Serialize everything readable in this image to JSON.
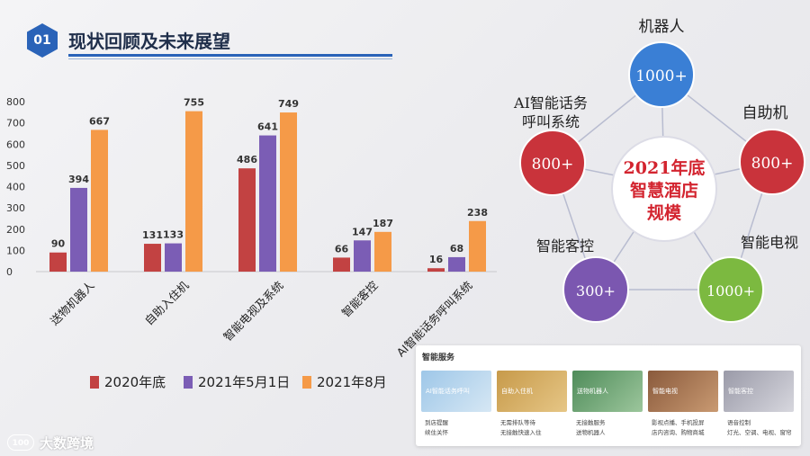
{
  "header": {
    "number": "01",
    "title": "现状回顾及未来展望"
  },
  "colors": {
    "s2020": "#c24242",
    "s2021may": "#7b5db5",
    "s2021aug": "#f59a48",
    "accent": "#2a63b8"
  },
  "chart_data": {
    "type": "bar",
    "categories": [
      "送物机器人",
      "自助入住机",
      "智能电视及系统",
      "智能客控",
      "AI智能话务呼叫系统"
    ],
    "series": [
      {
        "name": "2020年底",
        "values": [
          90,
          131,
          486,
          66,
          16
        ]
      },
      {
        "name": "2021年5月1日",
        "values": [
          394,
          133,
          641,
          147,
          68
        ]
      },
      {
        "name": "2021年8月",
        "values": [
          667,
          755,
          749,
          187,
          238
        ]
      }
    ],
    "yticks": [
      "0",
      "100",
      "200",
      "300",
      "400",
      "500",
      "600",
      "700",
      "800"
    ],
    "ylim": [
      0,
      800
    ],
    "legend_position": "bottom"
  },
  "bubbles": {
    "center": {
      "line1": "2021年底",
      "line2": "智慧酒店",
      "line3": "规模"
    },
    "items": [
      {
        "label": "机器人",
        "value": "1000+",
        "color": "#3a7fd5"
      },
      {
        "label": "自助机",
        "value": "800+",
        "color": "#c9333b"
      },
      {
        "label": "智能电视",
        "value": "1000+",
        "color": "#7cb940"
      },
      {
        "label": "智能客控",
        "value": "300+",
        "color": "#7b57b0"
      },
      {
        "label1": "AI智能话务",
        "label2": "呼叫系统",
        "value": "800+",
        "color": "#c9333b"
      }
    ]
  },
  "services": {
    "title": "智能服务",
    "cards": [
      {
        "tag": "AI智能话务呼叫",
        "line1": "到店提醒",
        "line2": "续住关怀"
      },
      {
        "tag": "自助入住机",
        "line1": "无需排队等待",
        "line2": "无接触快速入住"
      },
      {
        "tag": "送物机器人",
        "line1": "无接触服务",
        "line2": "送物机器人"
      },
      {
        "tag": "智能电视",
        "line1": "影视点播、手机投屏",
        "line2": "店内咨询、购物商城"
      },
      {
        "tag": "智能客控",
        "line1": "语音控制",
        "line2": "灯光、空调、电视、窗帘"
      }
    ]
  },
  "footer": {
    "logo": "100",
    "brand": "大数跨境"
  }
}
